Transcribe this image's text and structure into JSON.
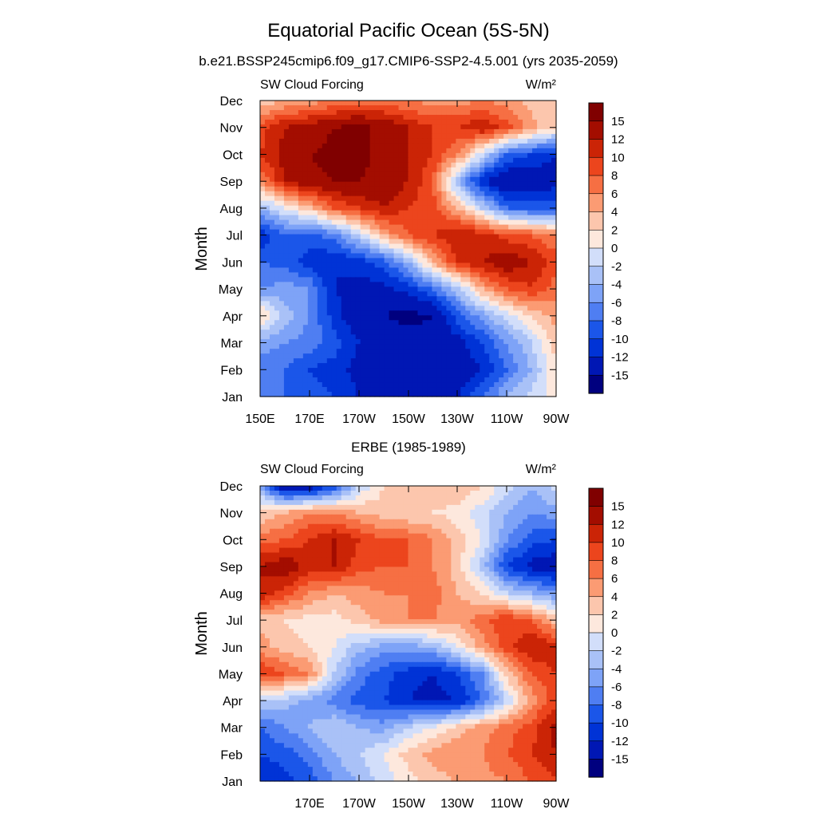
{
  "figure": {
    "title": "Equatorial Pacific Ocean (5S-5N)"
  },
  "chart_data": [
    {
      "type": "heatmap",
      "panel_title": "b.e21.BSSP245cmip6.f09_g17.CMIP6-SSP2-4.5.001 (yrs 2035-2059)",
      "left_label": "SW Cloud Forcing",
      "units": "W/m²",
      "ylabel": "Month",
      "y_tick_labels": [
        "Jan",
        "Feb",
        "Mar",
        "Apr",
        "May",
        "Jun",
        "Jul",
        "Aug",
        "Sep",
        "Oct",
        "Nov",
        "Dec"
      ],
      "x_tick_labels": [
        "150E",
        "170E",
        "170W",
        "150W",
        "130W",
        "110W",
        "90W"
      ],
      "xlim": [
        "150E",
        "90W"
      ],
      "ylim": [
        "Jan",
        "Dec"
      ],
      "colorbar_labels": [
        "15",
        "12",
        "10",
        "8",
        "6",
        "4",
        "2",
        "0",
        "-2",
        "-4",
        "-6",
        "-8",
        "-10",
        "-12",
        "-15"
      ],
      "note": "values approximate, W/m^2 anomaly field sampled at (longitude, month)",
      "x": [
        "150E",
        "160E",
        "170E",
        "180",
        "170W",
        "160W",
        "150W",
        "140W",
        "130W",
        "120W",
        "110W",
        "100W",
        "90W"
      ],
      "y": [
        "Jan",
        "Feb",
        "Mar",
        "Apr",
        "May",
        "Jun",
        "Jul",
        "Aug",
        "Sep",
        "Oct",
        "Nov",
        "Dec"
      ],
      "z": [
        [
          -6,
          -8,
          -9,
          -10,
          -12,
          -13,
          -14,
          -13,
          -12,
          -8,
          -4,
          -1,
          1
        ],
        [
          -7,
          -8,
          -10,
          -11,
          -13,
          -15,
          -15,
          -14,
          -14,
          -12,
          -8,
          -4,
          2
        ],
        [
          -5,
          -6,
          -7,
          -9,
          -12,
          -13,
          -13,
          -14,
          -13,
          -10,
          -6,
          -2,
          3
        ],
        [
          3,
          -3,
          -6,
          -11,
          -14,
          -15,
          -16,
          -15,
          -9,
          -5,
          -1,
          2,
          5
        ],
        [
          -6,
          -5,
          -6,
          -12,
          -13,
          -13,
          -11,
          -8,
          -3,
          4,
          8,
          10,
          7
        ],
        [
          -8,
          -9,
          -11,
          -12,
          -11,
          -9,
          -4,
          4,
          10,
          12,
          14,
          12,
          9
        ],
        [
          -12,
          -8,
          -9,
          -7,
          -2,
          4,
          8,
          10,
          12,
          11,
          9,
          8,
          6
        ],
        [
          -4,
          0,
          3,
          8,
          10,
          12,
          10,
          9,
          4,
          -2,
          -8,
          -9,
          -9
        ],
        [
          6,
          12,
          14,
          15,
          15,
          14,
          12,
          8,
          -4,
          -12,
          -15,
          -14,
          -13
        ],
        [
          10,
          13,
          15,
          16,
          16,
          14,
          12,
          10,
          6,
          -1,
          -8,
          -10,
          -12
        ],
        [
          9,
          12,
          13,
          15,
          16,
          14,
          12,
          10,
          10,
          12,
          9,
          5,
          2
        ],
        [
          2,
          4,
          5,
          6,
          6,
          7,
          6,
          5,
          5,
          6,
          5,
          3,
          2
        ]
      ]
    },
    {
      "type": "heatmap",
      "panel_title": "ERBE (1985-1989)",
      "left_label": "SW Cloud Forcing",
      "units": "W/m²",
      "ylabel": "Month",
      "y_tick_labels": [
        "Jan",
        "Feb",
        "Mar",
        "Apr",
        "May",
        "Jun",
        "Jul",
        "Aug",
        "Sep",
        "Oct",
        "Nov",
        "Dec"
      ],
      "x_tick_labels": [
        "170E",
        "170W",
        "150W",
        "130W",
        "110W",
        "90W"
      ],
      "xlim": [
        "150E",
        "90W"
      ],
      "ylim": [
        "Jan",
        "Dec"
      ],
      "colorbar_labels": [
        "15",
        "12",
        "10",
        "8",
        "6",
        "4",
        "2",
        "0",
        "-2",
        "-4",
        "-6",
        "-8",
        "-10",
        "-12",
        "-15"
      ],
      "note": "values approximate, W/m^2 anomaly field sampled at (longitude, month)",
      "x": [
        "150E",
        "160E",
        "170E",
        "180",
        "170W",
        "160W",
        "150W",
        "140W",
        "130W",
        "120W",
        "110W",
        "100W",
        "90W"
      ],
      "y": [
        "Jan",
        "Feb",
        "Mar",
        "Apr",
        "May",
        "Jun",
        "Jul",
        "Aug",
        "Sep",
        "Oct",
        "Nov",
        "Dec"
      ],
      "z": [
        [
          -12,
          -11,
          -9,
          -6,
          -4,
          -1,
          1,
          3,
          4,
          5,
          6,
          8,
          10
        ],
        [
          -10,
          -9,
          -7,
          -4,
          -2,
          0,
          3,
          5,
          6,
          6,
          8,
          10,
          12
        ],
        [
          -8,
          -6,
          -4,
          -2,
          -4,
          -5,
          -2,
          0,
          3,
          5,
          7,
          9,
          13
        ],
        [
          -2,
          -3,
          -5,
          -7,
          -9,
          -10,
          -12,
          -13,
          -12,
          -8,
          -2,
          5,
          9
        ],
        [
          10,
          8,
          6,
          -2,
          -7,
          -9,
          -11,
          -12,
          -10,
          -6,
          3,
          8,
          10
        ],
        [
          5,
          3,
          2,
          0,
          -3,
          -5,
          -5,
          -4,
          0,
          5,
          9,
          12,
          11
        ],
        [
          3,
          2,
          1,
          1,
          3,
          5,
          6,
          6,
          5,
          7,
          10,
          8,
          3
        ],
        [
          12,
          9,
          6,
          4,
          5,
          6,
          6,
          7,
          4,
          2,
          -2,
          -4,
          -6
        ],
        [
          12,
          14,
          11,
          12,
          9,
          8,
          8,
          6,
          3,
          -3,
          -10,
          -13,
          -14
        ],
        [
          7,
          8,
          10,
          12,
          10,
          8,
          8,
          6,
          3,
          0,
          -6,
          -9,
          -10
        ],
        [
          2,
          4,
          6,
          6,
          4,
          3,
          2,
          2,
          1,
          -1,
          -4,
          -6,
          -5
        ],
        [
          -4,
          -15,
          -14,
          -10,
          -2,
          2,
          4,
          4,
          4,
          2,
          -1,
          -4,
          -1
        ]
      ]
    }
  ],
  "colorscale": {
    "levels": [
      -15,
      -12,
      -10,
      -8,
      -6,
      -4,
      -2,
      0,
      2,
      4,
      6,
      8,
      10,
      12,
      15
    ],
    "colors": [
      "#00007f",
      "#0017b4",
      "#0033d6",
      "#1b56e9",
      "#4f7ef2",
      "#7ea3f7",
      "#a9c1f7",
      "#d2defa",
      "#fde8dd",
      "#fcc6ad",
      "#fb9b73",
      "#f66f43",
      "#ec451d",
      "#cb2406",
      "#a30d00",
      "#800000"
    ]
  }
}
